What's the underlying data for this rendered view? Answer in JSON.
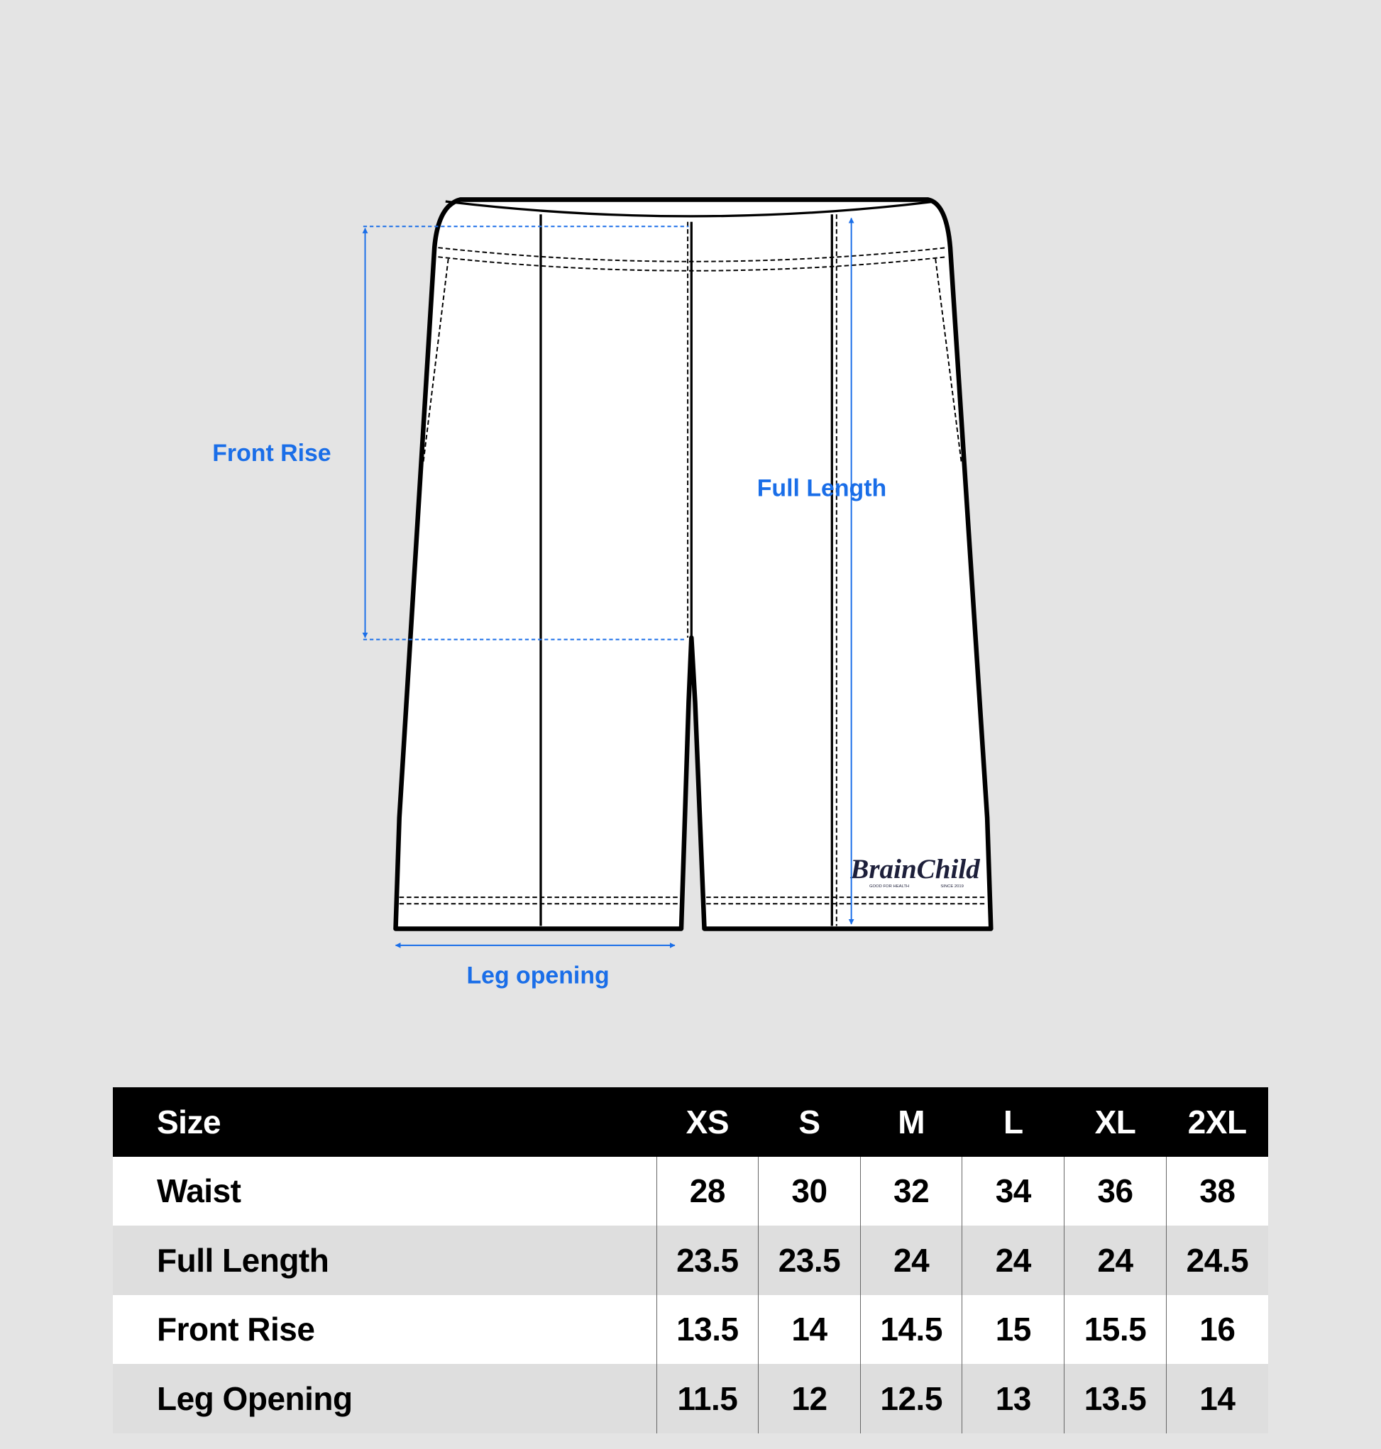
{
  "diagram": {
    "labels": {
      "front_rise": "Front Rise",
      "full_length": "Full Length",
      "leg_opening": "Leg opening"
    },
    "accent_color": "#1a6ee8",
    "logo": {
      "brand": "BrainChild",
      "tagline_left": "GOOD FOR HEALTH",
      "tagline_right": "SINCE 2019"
    }
  },
  "size_table": {
    "header": [
      "Size",
      "XS",
      "S",
      "M",
      "L",
      "XL",
      "2XL"
    ],
    "rows": [
      [
        "Waist",
        "28",
        "30",
        "32",
        "34",
        "36",
        "38"
      ],
      [
        "Full Length",
        "23.5",
        "23.5",
        "24",
        "24",
        "24",
        "24.5"
      ],
      [
        "Front Rise",
        "13.5",
        "14",
        "14.5",
        "15",
        "15.5",
        "16"
      ],
      [
        "Leg Opening",
        "11.5",
        "12",
        "12.5",
        "13",
        "13.5",
        "14"
      ]
    ]
  }
}
